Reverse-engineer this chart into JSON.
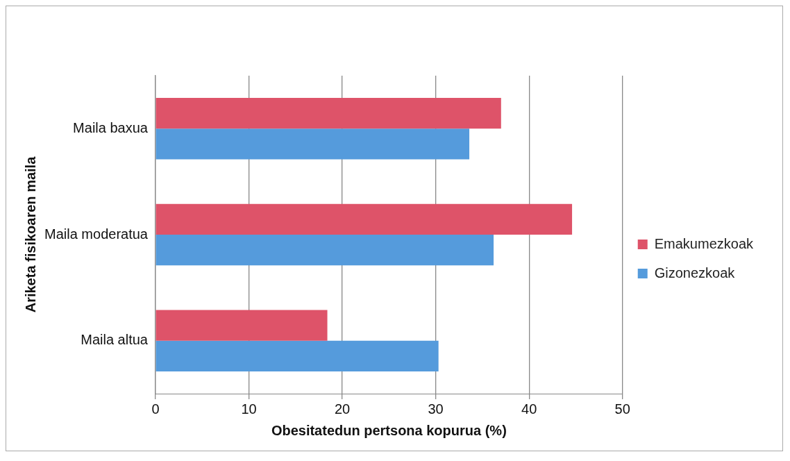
{
  "chart_data": {
    "type": "bar",
    "orientation": "horizontal",
    "xlabel": "Obesitatedun pertsona kopurua (%)",
    "ylabel": "Ariketa fisikoaren maila",
    "categories": [
      "Maila baxua",
      "Maila moderatua",
      "Maila altua"
    ],
    "series": [
      {
        "name": "Emakumezkoak",
        "color": "#de5369",
        "values": [
          37.0,
          44.6,
          18.4
        ]
      },
      {
        "name": "Gizonezkoak",
        "color": "#559bdc",
        "values": [
          33.6,
          36.2,
          30.3
        ]
      }
    ],
    "xlim": [
      0,
      50
    ],
    "xticks": [
      0,
      10,
      20,
      30,
      40,
      50
    ],
    "grid": "x",
    "legend": "right"
  }
}
